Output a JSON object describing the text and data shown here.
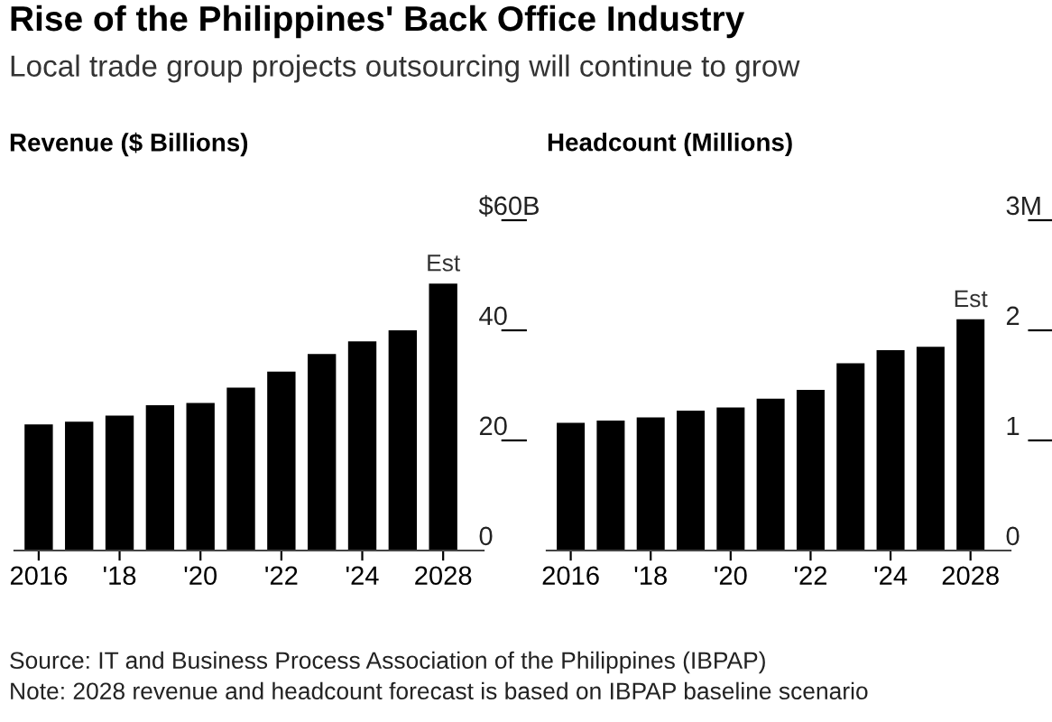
{
  "chart_data": [
    {
      "type": "bar",
      "title": "Rise of the Philippines' Back Office Industry",
      "subtitle": "Local trade group projects outsourcing will continue to grow",
      "ylabel": "Revenue ($ Billions)",
      "categories": [
        "2016",
        null,
        "'18",
        null,
        "'20",
        null,
        "'22",
        null,
        "'24",
        null,
        "2028"
      ],
      "values": [
        22.9,
        23.4,
        24.5,
        26.4,
        26.8,
        29.6,
        32.5,
        35.7,
        38,
        40,
        48.5
      ],
      "color": "#000000",
      "ylim": [
        0,
        60
      ],
      "yticks": [
        0,
        20,
        40,
        {
          "value": 60,
          "label": "$60B"
        }
      ],
      "grid": false,
      "annotations": [
        {
          "text": "Est",
          "x": "2028",
          "y": 48.5
        },
        "Source: IT and Business Process Association of the Philippines (IBPAP)",
        "Note: 2028 revenue and headcount forecast is based on IBPAP baseline scenario"
      ]
    },
    {
      "type": "bar",
      "ylabel": "Headcount (Millions)",
      "categories": [
        "2016",
        null,
        "'18",
        null,
        "'20",
        null,
        "'22",
        null,
        "'24",
        null,
        "2028"
      ],
      "values": [
        1.16,
        1.18,
        1.21,
        1.27,
        1.3,
        1.38,
        1.46,
        1.7,
        1.82,
        1.85,
        2.1
      ],
      "color": "#000000",
      "ylim": [
        0,
        3
      ],
      "yticks": [
        0,
        1,
        2,
        {
          "value": 3,
          "label": "3M"
        }
      ],
      "grid": false,
      "annotations": [
        {
          "text": "Est",
          "x": "2028",
          "y": 2.1
        }
      ]
    }
  ]
}
